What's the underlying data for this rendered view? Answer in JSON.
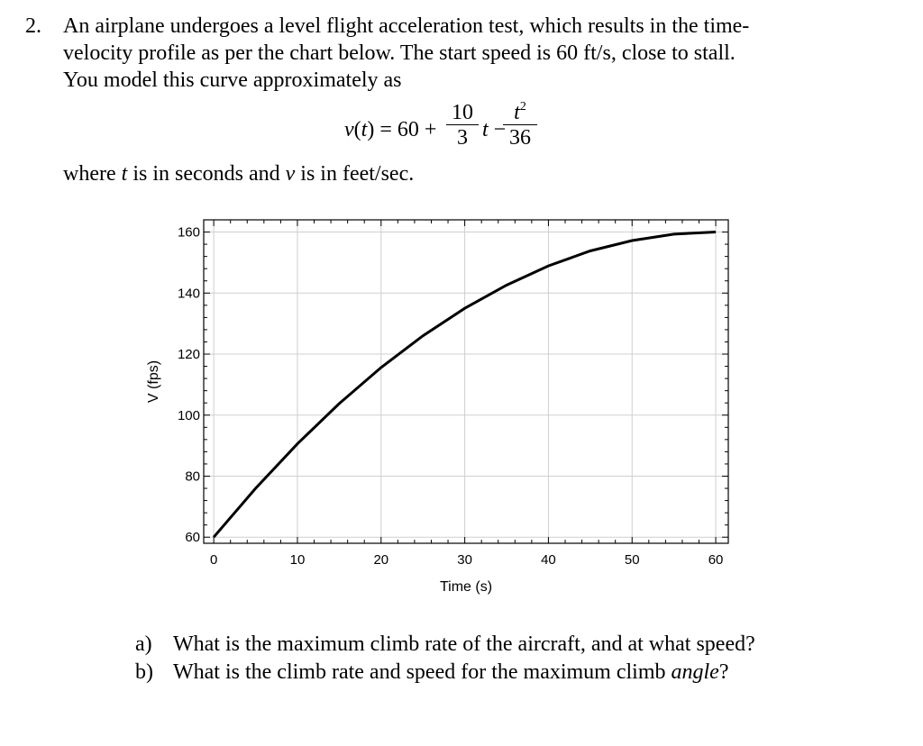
{
  "problem": {
    "number": "2.",
    "line1": "An airplane undergoes a level flight acceleration test, which results in the time-",
    "line2": "velocity profile as per the chart below. The start speed is 60 ft/s, close to stall.",
    "line3": "You model this curve approximately as",
    "equation": {
      "lhs_v": "v",
      "lhs_open": "(",
      "lhs_t": "t",
      "lhs_rest": ") = 60 +",
      "frac1_num": "10",
      "frac1_den": "3",
      "mid_t": "t",
      "minus": " −",
      "frac2_num_t": "t",
      "frac2_num_exp": "2",
      "frac2_den": "36"
    },
    "where_pre": "where ",
    "where_t": "t",
    "where_mid": " is in seconds and ",
    "where_v": "v",
    "where_post": " is in feet/sec."
  },
  "chart_data": {
    "type": "line",
    "xlabel": "Time (s)",
    "ylabel": "V (fps)",
    "xlim": [
      -1.2,
      61.5
    ],
    "ylim": [
      58,
      164
    ],
    "xticks": [
      0,
      10,
      20,
      30,
      40,
      50,
      60
    ],
    "yticks": [
      60,
      80,
      100,
      120,
      140,
      160
    ],
    "x_minor_step": 2,
    "y_minor_step": 4,
    "grid": true,
    "series": [
      {
        "x": [
          0,
          5,
          10,
          15,
          20,
          25,
          30,
          35,
          40,
          45,
          50,
          55,
          60
        ],
        "values": [
          60,
          76.0,
          90.6,
          103.8,
          115.6,
          126.0,
          135.0,
          142.6,
          148.9,
          153.8,
          157.2,
          159.3,
          160.0
        ]
      }
    ]
  },
  "questions": [
    {
      "label": "a)",
      "text_pre": "What is the maximum climb rate of the aircraft, and at what speed?",
      "text_em": "",
      "text_post": ""
    },
    {
      "label": "b)",
      "text_pre": "What is the climb rate and speed for the maximum climb ",
      "text_em": "angle",
      "text_post": "?"
    }
  ]
}
